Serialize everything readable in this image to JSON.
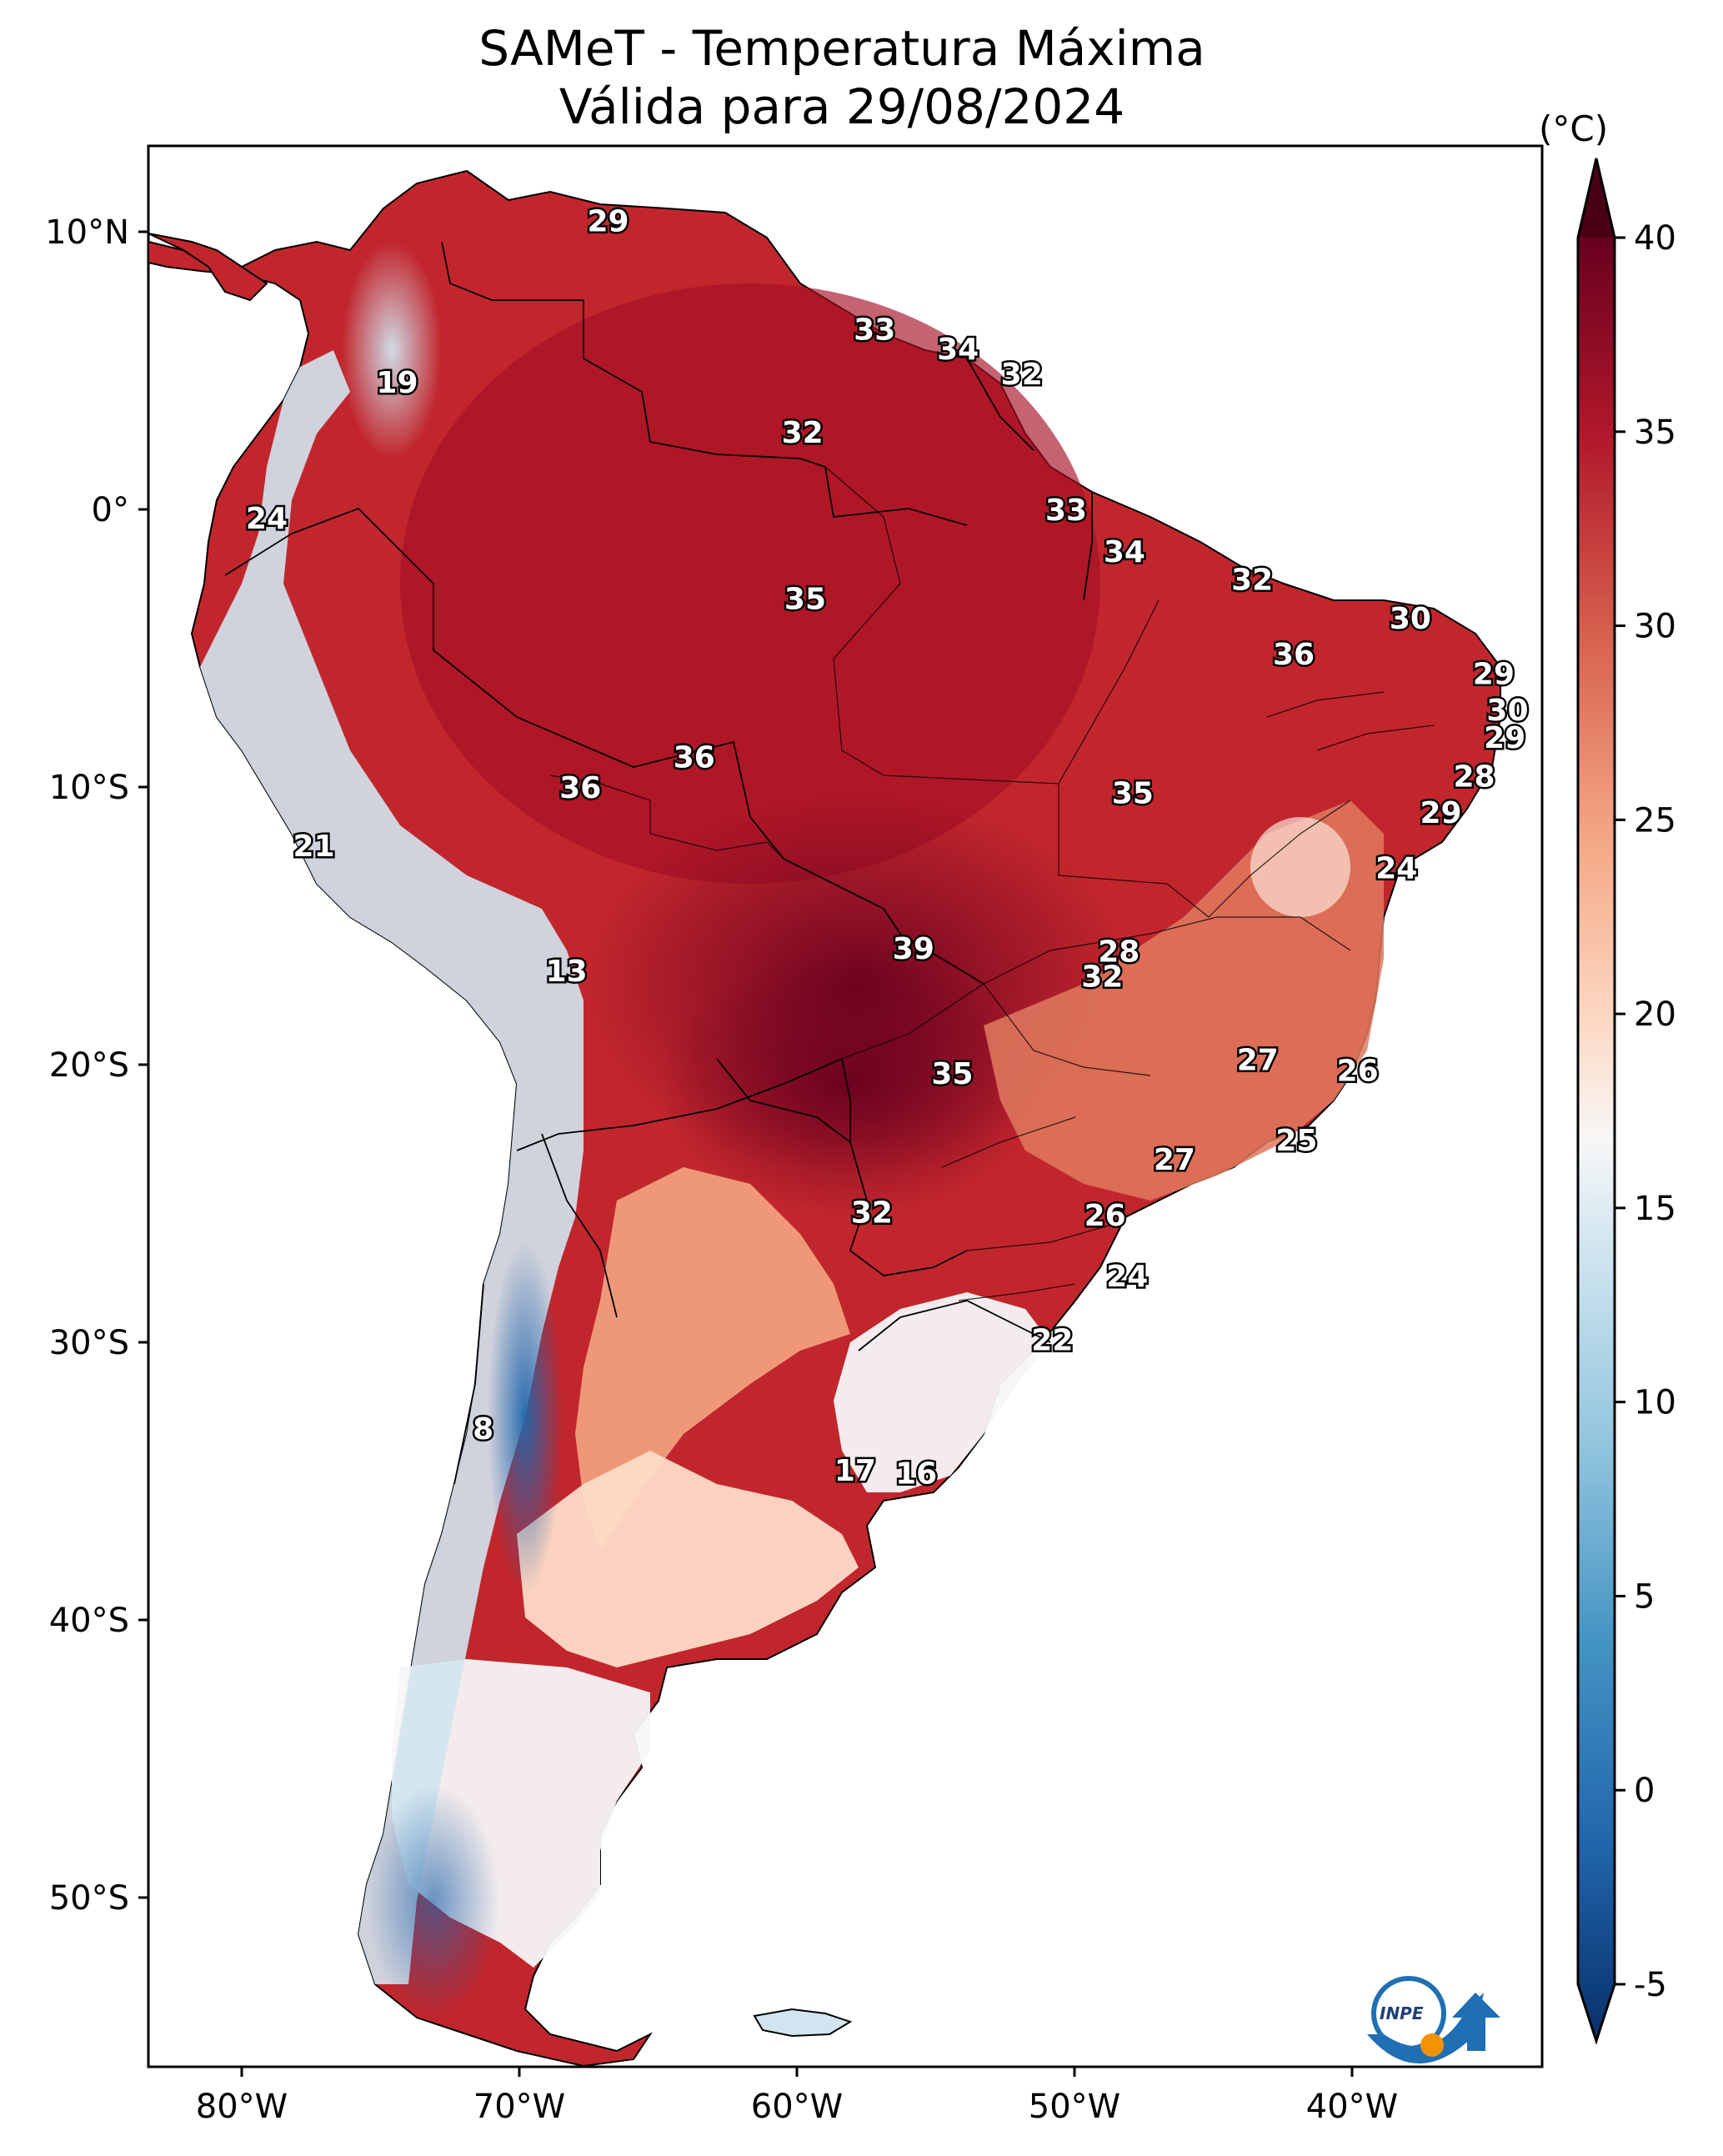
{
  "title": {
    "line1": "SAMeT - Temperatura Máxima",
    "line2": "Válida para 29/08/2024"
  },
  "colorbar": {
    "unit": "(°C)",
    "min": -5,
    "max": 40,
    "ticks": [
      "-5",
      "0",
      "5",
      "10",
      "15",
      "20",
      "25",
      "30",
      "35",
      "40"
    ],
    "colors": [
      "#08306b",
      "#2166ac",
      "#4393c3",
      "#92c5de",
      "#d1e5f0",
      "#f7f7f7",
      "#fddbc7",
      "#f4a582",
      "#d6604d",
      "#b2182b",
      "#67001f"
    ]
  },
  "axes": {
    "lat_labels": [
      "10°N",
      "0°",
      "10°S",
      "20°S",
      "30°S",
      "40°S",
      "50°S"
    ],
    "lon_labels": [
      "80°W",
      "70°W",
      "60°W",
      "50°W",
      "40°W"
    ]
  },
  "logo": {
    "text": "INPE"
  },
  "temperature_labels": [
    {
      "value": "29",
      "lon": -66.8,
      "lat": 10.4
    },
    {
      "value": "33",
      "lon": -57.2,
      "lat": 6.5
    },
    {
      "value": "34",
      "lon": -54.2,
      "lat": 5.8
    },
    {
      "value": "32",
      "lon": -51.9,
      "lat": 4.9
    },
    {
      "value": "19",
      "lon": -74.4,
      "lat": 4.6
    },
    {
      "value": "32",
      "lon": -59.8,
      "lat": 2.8
    },
    {
      "value": "24",
      "lon": -79.1,
      "lat": -0.3
    },
    {
      "value": "33",
      "lon": -50.3,
      "lat": 0.0
    },
    {
      "value": "34",
      "lon": -48.2,
      "lat": -1.5
    },
    {
      "value": "35",
      "lon": -59.7,
      "lat": -3.2
    },
    {
      "value": "32",
      "lon": -43.6,
      "lat": -2.5
    },
    {
      "value": "30",
      "lon": -37.9,
      "lat": -3.9
    },
    {
      "value": "36",
      "lon": -42.1,
      "lat": -5.2
    },
    {
      "value": "29",
      "lon": -34.9,
      "lat": -5.9
    },
    {
      "value": "30",
      "lon": -34.4,
      "lat": -7.2
    },
    {
      "value": "29",
      "lon": -34.5,
      "lat": -8.2
    },
    {
      "value": "36",
      "lon": -63.7,
      "lat": -8.9
    },
    {
      "value": "36",
      "lon": -67.8,
      "lat": -10.0
    },
    {
      "value": "35",
      "lon": -47.9,
      "lat": -10.2
    },
    {
      "value": "28",
      "lon": -35.6,
      "lat": -9.6
    },
    {
      "value": "29",
      "lon": -36.8,
      "lat": -10.9
    },
    {
      "value": "21",
      "lon": -77.4,
      "lat": -12.1
    },
    {
      "value": "24",
      "lon": -38.4,
      "lat": -12.9
    },
    {
      "value": "39",
      "lon": -55.8,
      "lat": -15.8
    },
    {
      "value": "28",
      "lon": -48.4,
      "lat": -15.9
    },
    {
      "value": "32",
      "lon": -49.0,
      "lat": -16.8
    },
    {
      "value": "13",
      "lon": -68.3,
      "lat": -16.6
    },
    {
      "value": "27",
      "lon": -43.4,
      "lat": -19.8
    },
    {
      "value": "26",
      "lon": -39.8,
      "lat": -20.2
    },
    {
      "value": "35",
      "lon": -54.4,
      "lat": -20.3
    },
    {
      "value": "25",
      "lon": -42.0,
      "lat": -22.7
    },
    {
      "value": "27",
      "lon": -46.4,
      "lat": -23.4
    },
    {
      "value": "32",
      "lon": -57.3,
      "lat": -25.3
    },
    {
      "value": "26",
      "lon": -48.9,
      "lat": -25.4
    },
    {
      "value": "24",
      "lon": -48.1,
      "lat": -27.6
    },
    {
      "value": "22",
      "lon": -50.8,
      "lat": -29.9
    },
    {
      "value": "8",
      "lon": -71.3,
      "lat": -33.1
    },
    {
      "value": "17",
      "lon": -57.9,
      "lat": -34.6
    },
    {
      "value": "16",
      "lon": -55.7,
      "lat": -34.7
    }
  ]
}
